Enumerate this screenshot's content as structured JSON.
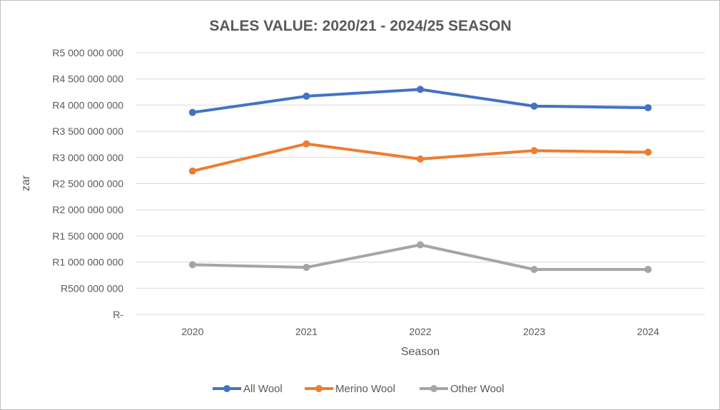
{
  "chart_data": {
    "type": "line",
    "title": "SALES VALUE: 2020/21 - 2024/25 SEASON",
    "xlabel": "Season",
    "ylabel": "zar",
    "categories": [
      "2020",
      "2021",
      "2022",
      "2023",
      "2024"
    ],
    "ylim": [
      0,
      5000000000
    ],
    "yticks": [
      0,
      500000000,
      1000000000,
      1500000000,
      2000000000,
      2500000000,
      3000000000,
      3500000000,
      4000000000,
      4500000000,
      5000000000
    ],
    "ytick_labels": [
      "R-",
      "R500 000 000",
      "R1 000 000 000",
      "R1 500 000 000",
      "R2 000 000 000",
      "R2 500 000 000",
      "R3 000 000 000",
      "R3 500 000 000",
      "R4 000 000 000",
      "R4 500 000 000",
      "R5 000 000 000"
    ],
    "grid": true,
    "legend_position": "bottom",
    "series": [
      {
        "name": "All Wool",
        "color": "#4472C4",
        "values": [
          3860000000,
          4170000000,
          4300000000,
          3980000000,
          3950000000
        ]
      },
      {
        "name": "Merino Wool",
        "color": "#ED7D31",
        "values": [
          2740000000,
          3260000000,
          2970000000,
          3130000000,
          3100000000
        ]
      },
      {
        "name": "Other Wool",
        "color": "#A5A5A5",
        "values": [
          950000000,
          900000000,
          1330000000,
          860000000,
          860000000
        ]
      }
    ]
  }
}
